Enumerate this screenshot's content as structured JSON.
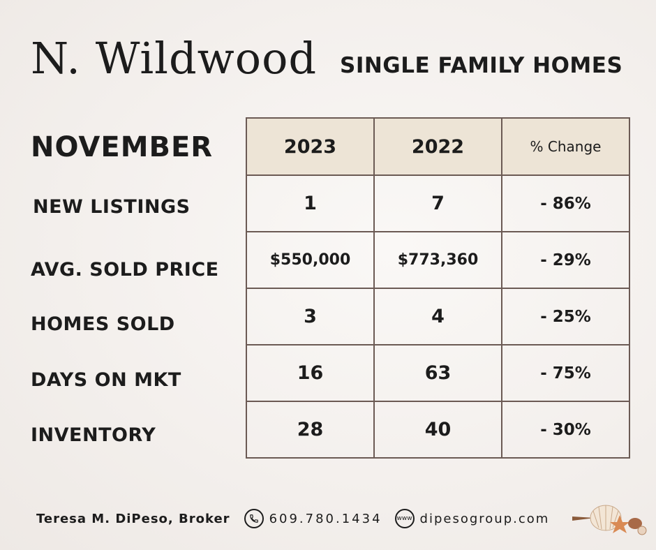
{
  "header": {
    "title": "N. Wildwood",
    "subtitle": "SINGLE FAMILY HOMES"
  },
  "month": "NOVEMBER",
  "table": {
    "columns": [
      "2023",
      "2022",
      "% Change"
    ],
    "rows": [
      {
        "label": "NEW LISTINGS",
        "values": [
          "1",
          "7",
          "- 86%"
        ]
      },
      {
        "label": "AVG. SOLD PRICE",
        "values": [
          "$550,000",
          "$773,360",
          "- 29%"
        ]
      },
      {
        "label": "HOMES SOLD",
        "values": [
          "3",
          "4",
          "- 25%"
        ]
      },
      {
        "label": "DAYS ON MKT",
        "values": [
          "16",
          "63",
          "- 75%"
        ]
      },
      {
        "label": "INVENTORY",
        "values": [
          "28",
          "40",
          "- 30%"
        ]
      }
    ]
  },
  "footer": {
    "broker": "Teresa M. DiPeso, Broker",
    "phone": "609.780.1434",
    "website": "dipesogroup.com",
    "phone_icon": "phone-icon",
    "web_icon": "www-icon",
    "www_glyph": "www"
  },
  "colors": {
    "header_fill": "#ede4d6",
    "border": "#6b5a54",
    "text": "#1c1c1c"
  }
}
